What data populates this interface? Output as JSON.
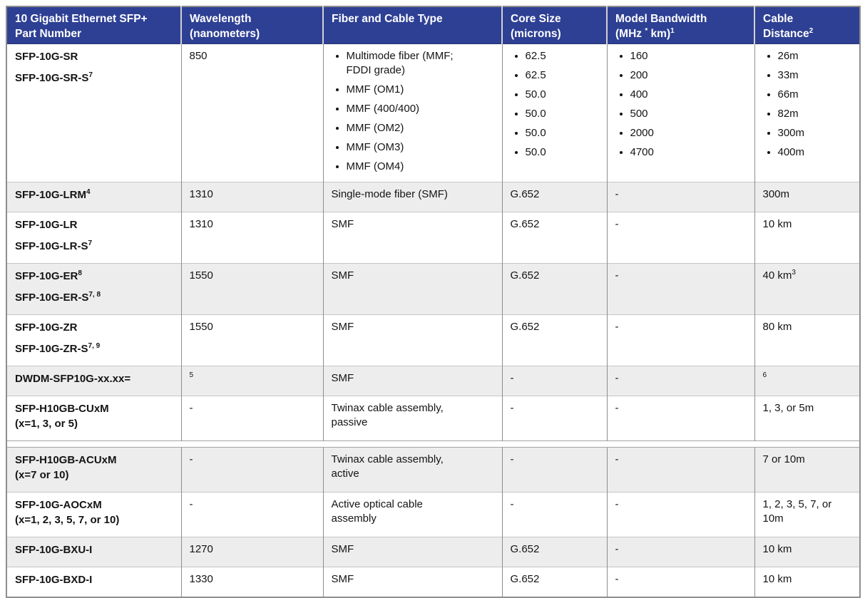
{
  "colors": {
    "header_bg": "#2e4094",
    "header_text": "#ffffff",
    "stripe_bg": "#ededed",
    "body_text": "#141414",
    "border": "#8e8e8e"
  },
  "table": {
    "headers": [
      {
        "key": "part-number",
        "lines": [
          "10 Gigabit Ethernet SFP+",
          "Part Number"
        ]
      },
      {
        "key": "wavelength",
        "lines": [
          "Wavelength",
          "(nanometers)"
        ]
      },
      {
        "key": "fiber-cable-type",
        "lines": [
          "Fiber and Cable Type"
        ]
      },
      {
        "key": "core-size",
        "lines": [
          "Core Size",
          "(microns)"
        ]
      },
      {
        "key": "model-bandwidth",
        "lines": [
          "Model Bandwidth",
          "(MHz ^{*} km)^{1}"
        ]
      },
      {
        "key": "cable-distance",
        "lines": [
          "Cable",
          "Distance^{2}"
        ]
      }
    ],
    "rows": [
      {
        "part": {
          "paras": [
            [
              "SFP-10G-SR"
            ],
            [
              "SFP-10G-SR-S^{7}"
            ]
          ]
        },
        "cells": [
          {
            "lines": [
              "850"
            ]
          },
          {
            "bullets": [
              [
                "Multimode fiber (MMF;",
                "FDDI grade)"
              ],
              [
                "MMF (OM1)"
              ],
              [
                "MMF (400/400)"
              ],
              [
                "MMF (OM2)"
              ],
              [
                "MMF (OM3)"
              ],
              [
                "MMF (OM4)"
              ]
            ]
          },
          {
            "bullets": [
              [
                "62.5"
              ],
              [
                "62.5"
              ],
              [
                "50.0"
              ],
              [
                "50.0"
              ],
              [
                "50.0"
              ],
              [
                "50.0"
              ]
            ]
          },
          {
            "bullets": [
              [
                "160"
              ],
              [
                "200"
              ],
              [
                "400"
              ],
              [
                "500"
              ],
              [
                "2000"
              ],
              [
                "4700"
              ]
            ]
          },
          {
            "bullets": [
              [
                "26m"
              ],
              [
                "33m"
              ],
              [
                "66m"
              ],
              [
                "82m"
              ],
              [
                "300m"
              ],
              [
                "400m"
              ]
            ]
          }
        ]
      },
      {
        "part": {
          "paras": [
            [
              "SFP-10G-LRM^{4}"
            ]
          ]
        },
        "cells": [
          {
            "lines": [
              "1310"
            ]
          },
          {
            "lines": [
              "Single-mode fiber (SMF)"
            ]
          },
          {
            "lines": [
              "G.652"
            ]
          },
          {
            "lines": [
              "-"
            ]
          },
          {
            "lines": [
              "300m"
            ]
          }
        ]
      },
      {
        "part": {
          "paras": [
            [
              "SFP-10G-LR"
            ],
            [
              "SFP-10G-LR-S^{7}"
            ]
          ]
        },
        "cells": [
          {
            "lines": [
              "1310"
            ]
          },
          {
            "lines": [
              "SMF"
            ]
          },
          {
            "lines": [
              "G.652"
            ]
          },
          {
            "lines": [
              "-"
            ]
          },
          {
            "lines": [
              "10 km"
            ]
          }
        ]
      },
      {
        "part": {
          "paras": [
            [
              "SFP-10G-ER^{8}"
            ],
            [
              "SFP-10G-ER-S^{7, 8}"
            ]
          ]
        },
        "cells": [
          {
            "lines": [
              "1550"
            ]
          },
          {
            "lines": [
              "SMF"
            ]
          },
          {
            "lines": [
              "G.652"
            ]
          },
          {
            "lines": [
              "-"
            ]
          },
          {
            "lines": [
              "40 km^{3}"
            ]
          }
        ]
      },
      {
        "part": {
          "paras": [
            [
              "SFP-10G-ZR"
            ],
            [
              "SFP-10G-ZR-S^{7, 9}"
            ]
          ]
        },
        "cells": [
          {
            "lines": [
              "1550"
            ]
          },
          {
            "lines": [
              "SMF"
            ]
          },
          {
            "lines": [
              "G.652"
            ]
          },
          {
            "lines": [
              "-"
            ]
          },
          {
            "lines": [
              "80 km"
            ]
          }
        ]
      },
      {
        "part": {
          "paras": [
            [
              "DWDM-SFP10G-xx.xx="
            ]
          ]
        },
        "cells": [
          {
            "lines": [
              "^{5}"
            ]
          },
          {
            "lines": [
              "SMF"
            ]
          },
          {
            "lines": [
              "-"
            ]
          },
          {
            "lines": [
              "-"
            ]
          },
          {
            "lines": [
              "^{6}"
            ]
          }
        ]
      },
      {
        "part": {
          "paras": [
            [
              "SFP-H10GB-CUxM",
              "(x=1, 3, or 5)"
            ]
          ]
        },
        "cells": [
          {
            "lines": [
              "-"
            ]
          },
          {
            "lines": [
              "Twinax cable assembly,",
              "passive"
            ]
          },
          {
            "lines": [
              "-"
            ]
          },
          {
            "lines": [
              "-"
            ]
          },
          {
            "lines": [
              "1, 3, or 5m"
            ]
          }
        ]
      },
      {
        "part": {
          "paras": [
            [
              "SFP-H10GB-ACUxM",
              "(x=7 or 10)"
            ]
          ]
        },
        "cells": [
          {
            "lines": [
              "-"
            ]
          },
          {
            "lines": [
              "Twinax cable assembly,",
              "active"
            ]
          },
          {
            "lines": [
              "-"
            ]
          },
          {
            "lines": [
              "-"
            ]
          },
          {
            "lines": [
              "7 or 10m"
            ]
          }
        ]
      },
      {
        "part": {
          "paras": [
            [
              "SFP-10G-AOCxM",
              "(x=1, 2, 3, 5, 7, or 10)"
            ]
          ]
        },
        "cells": [
          {
            "lines": [
              "-"
            ]
          },
          {
            "lines": [
              "Active optical cable",
              "assembly"
            ]
          },
          {
            "lines": [
              "-"
            ]
          },
          {
            "lines": [
              "-"
            ]
          },
          {
            "lines": [
              "1, 2, 3, 5, 7, or",
              "10m"
            ]
          }
        ]
      },
      {
        "part": {
          "paras": [
            [
              "SFP-10G-BXU-I"
            ]
          ]
        },
        "cells": [
          {
            "lines": [
              "1270"
            ]
          },
          {
            "lines": [
              "SMF"
            ]
          },
          {
            "lines": [
              "G.652"
            ]
          },
          {
            "lines": [
              "-"
            ]
          },
          {
            "lines": [
              "10 km"
            ]
          }
        ]
      },
      {
        "part": {
          "paras": [
            [
              "SFP-10G-BXD-I"
            ]
          ]
        },
        "cells": [
          {
            "lines": [
              "1330"
            ]
          },
          {
            "lines": [
              "SMF"
            ]
          },
          {
            "lines": [
              "G.652"
            ]
          },
          {
            "lines": [
              "-"
            ]
          },
          {
            "lines": [
              "10 km"
            ]
          }
        ]
      }
    ]
  }
}
